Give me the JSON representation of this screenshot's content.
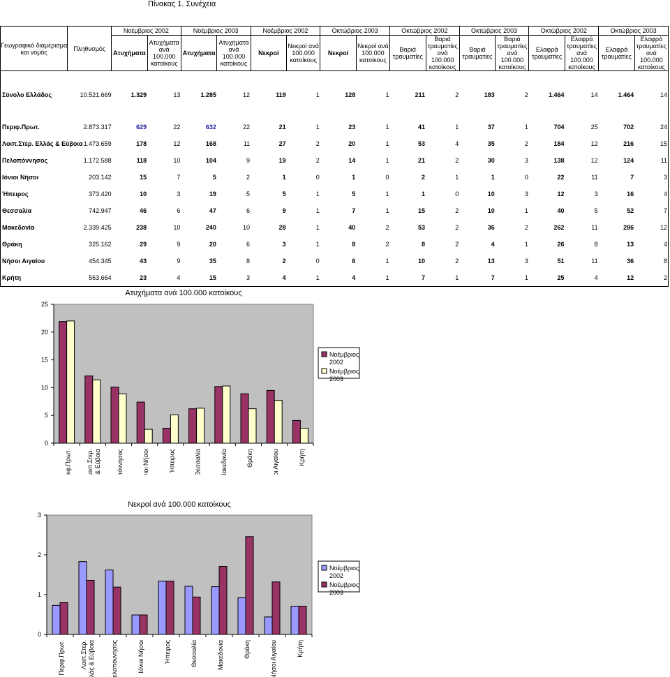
{
  "page_title": "Πίνακας 1. Συνέχεια",
  "table": {
    "region_header": "Γεωγραφικό διαμέρισμα και νομός",
    "population_header": "Πληθυσμός",
    "months": [
      "Νοέμβριος 2002",
      "Νοέμβριος 2003",
      "Νοέμβριος 2002",
      "Οκτώβριος 2003",
      "Οκτώβριος 2002",
      "Οκτώβριος 2003",
      "Οκτώβριος 2002",
      "Οκτώβριος 2003"
    ],
    "subheaders": [
      "Ατυχήματα",
      "Ατυχήματα ανά 100.000 κατοίκους",
      "Ατυχήματα",
      "Ατυχήματα ανά 100.000 κατοίκους",
      "Νεκροί",
      "Νεκροί ανά 100.000 κατοίκους",
      "Νεκροί",
      "Νεκροί ανά 100.000 κατοίκους",
      "Βαριά τραυματίες",
      "Βαριά τραυματίες ανά 100.000 κατοίκους",
      "Βαριά τραυματίες",
      "Βαριά τραυματίες ανά 100.000 κατοίκους",
      "Ελαφρά τραυματίες",
      "Ελαφρά τραυματίες ανά 100.000 κατοίκους",
      "Ελαφρά τραυματίες",
      "Ελαφρά τραυματίες ανά 100.000 κατοίκους"
    ],
    "rows": [
      {
        "name": "Σύνολο Ελλάδος",
        "pop": "10.521.669",
        "vals": [
          "1.329",
          "13",
          "1.285",
          "12",
          "119",
          "1",
          "128",
          "1",
          "211",
          "2",
          "183",
          "2",
          "1.464",
          "14",
          "1.464",
          "14"
        ],
        "spacer_after": true
      },
      {
        "name": "Περιφ.Πρωτ.",
        "pop": "2.873.317",
        "vals": [
          "629",
          "22",
          "632",
          "22",
          "21",
          "1",
          "23",
          "1",
          "41",
          "1",
          "37",
          "1",
          "704",
          "25",
          "702",
          "24"
        ]
      },
      {
        "name": "Λοιπ.Στερ. Ελλάς & Εύβοια",
        "pop": "1.473.659",
        "vals": [
          "178",
          "12",
          "168",
          "11",
          "27",
          "2",
          "20",
          "1",
          "53",
          "4",
          "35",
          "2",
          "184",
          "12",
          "216",
          "15"
        ]
      },
      {
        "name": "Πελοπόννησος",
        "pop": "1.172.588",
        "vals": [
          "118",
          "10",
          "104",
          "9",
          "19",
          "2",
          "14",
          "1",
          "21",
          "2",
          "30",
          "3",
          "138",
          "12",
          "124",
          "11"
        ]
      },
      {
        "name": "Ιόνιοι Νήσοι",
        "pop": "203.142",
        "vals": [
          "15",
          "7",
          "5",
          "2",
          "1",
          "0",
          "1",
          "0",
          "2",
          "1",
          "1",
          "0",
          "22",
          "11",
          "7",
          "3"
        ]
      },
      {
        "name": "Ήπειρος",
        "pop": "373.420",
        "vals": [
          "10",
          "3",
          "19",
          "5",
          "5",
          "1",
          "5",
          "1",
          "1",
          "0",
          "10",
          "3",
          "12",
          "3",
          "16",
          "4"
        ]
      },
      {
        "name": "Θεσσαλία",
        "pop": "742.947",
        "vals": [
          "46",
          "6",
          "47",
          "6",
          "9",
          "1",
          "7",
          "1",
          "15",
          "2",
          "10",
          "1",
          "40",
          "5",
          "52",
          "7"
        ]
      },
      {
        "name": "Μακεδονία",
        "pop": "2.339.425",
        "vals": [
          "238",
          "10",
          "240",
          "10",
          "28",
          "1",
          "40",
          "2",
          "53",
          "2",
          "36",
          "2",
          "262",
          "11",
          "286",
          "12"
        ]
      },
      {
        "name": "Θράκη",
        "pop": "325.162",
        "vals": [
          "29",
          "9",
          "20",
          "6",
          "3",
          "1",
          "8",
          "2",
          "8",
          "2",
          "4",
          "1",
          "26",
          "8",
          "13",
          "4"
        ]
      },
      {
        "name": "Νήσοι Αιγαίου",
        "pop": "454.345",
        "vals": [
          "43",
          "9",
          "35",
          "8",
          "2",
          "0",
          "6",
          "1",
          "10",
          "2",
          "13",
          "3",
          "51",
          "11",
          "36",
          "8"
        ]
      },
      {
        "name": "Κρήτη",
        "pop": "563.664",
        "vals": [
          "23",
          "4",
          "15",
          "3",
          "4",
          "1",
          "4",
          "1",
          "7",
          "1",
          "7",
          "1",
          "25",
          "4",
          "12",
          "2"
        ]
      }
    ]
  },
  "colors": {
    "maroon": "#993366",
    "cream": "#ffffcc",
    "lavender": "#9999ff",
    "plot_bg": "#c0c0c0"
  },
  "chart_data": [
    {
      "type": "bar",
      "title": "Ατυχήματα ανά 100.000 κατοίκους",
      "categories": [
        "Περιφ.Πρωτ.",
        "Λοιπ.Στερ. Ελλάς & Εύβοια",
        "Πελοπόννησος",
        "Ιόνιοι Νήσοι",
        "Ήπειρος",
        "Θεσσαλία",
        "Μακεδονία",
        "Θράκη",
        "Νήσοι Αιγαίου",
        "Κρήτη"
      ],
      "series": [
        {
          "name": "Νοέμβριος 2002",
          "values": [
            21.9,
            12.1,
            10.1,
            7.4,
            2.7,
            6.2,
            10.2,
            8.9,
            9.5,
            4.1
          ]
        },
        {
          "name": "Νοέμβριος 2003",
          "values": [
            22.0,
            11.4,
            8.9,
            2.5,
            5.1,
            6.3,
            10.3,
            6.2,
            7.7,
            2.7
          ]
        }
      ],
      "ylim": [
        0,
        25
      ],
      "yticks": [
        "0",
        "5",
        "10",
        "15",
        "20",
        "25"
      ],
      "legend": "right",
      "grid": false
    },
    {
      "type": "bar",
      "title": "Νεκροί ανά 100.000 κατοίκους",
      "categories": [
        "Περιφ.Πρωτ.",
        "Λοιπ.Στερ. Ελλάς & Εύβοια",
        "Πελοπόννησος",
        "Ιόνιοι Νήσοι",
        "Ήπειρος",
        "Θεσσαλία",
        "Μακεδονία",
        "Θράκη",
        "Νήσοι Αιγαίου",
        "Κρήτη"
      ],
      "series": [
        {
          "name": "Νοέμβριος 2002",
          "values": [
            0.73,
            1.83,
            1.62,
            0.49,
            1.34,
            1.21,
            1.2,
            0.92,
            0.44,
            0.71
          ]
        },
        {
          "name": "Νοέμβριος 2003",
          "values": [
            0.8,
            1.36,
            1.19,
            0.49,
            1.34,
            0.94,
            1.71,
            2.46,
            1.32,
            0.71
          ]
        }
      ],
      "ylim": [
        0,
        3
      ],
      "yticks": [
        "0",
        "1",
        "2",
        "3"
      ],
      "legend": "right",
      "grid": false
    }
  ]
}
